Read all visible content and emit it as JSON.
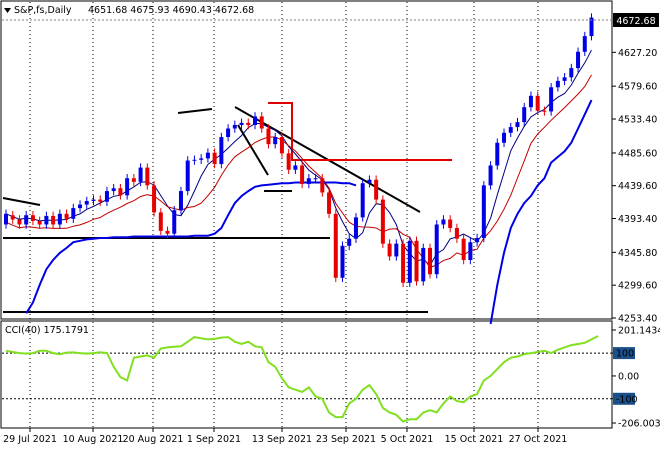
{
  "header": {
    "symbol": "S&P,fs,Daily",
    "ohlc": "4651.68 4675.93 4690.43 4672.68"
  },
  "indicator": {
    "label": "CCI(40) 175.1791"
  },
  "colors": {
    "bull": "#0000e6",
    "bear": "#e60000",
    "ma_fast": "#000080",
    "ma_mid": "#c00000",
    "ma_slow": "#0000e6",
    "cci": "#80e020",
    "level_hline": "#e00000",
    "support": "#000000",
    "price_badge_bg": "#000000",
    "price_badge_fg": "#ffffff"
  },
  "price_axis": {
    "ticks": [
      "4627.20",
      "4579.60",
      "4533.40",
      "4485.60",
      "4439.60",
      "4393.40",
      "4345.80",
      "4299.60",
      "4253.40"
    ],
    "current": "4672.68"
  },
  "cci_axis": {
    "ticks": [
      "201.1434",
      "100",
      "0.00",
      "-100",
      "-206.0037"
    ]
  },
  "time_axis": {
    "labels": [
      "29 Jul 2021",
      "10 Aug 2021",
      "20 Aug 2021",
      "1 Sep 2021",
      "13 Sep 2021",
      "23 Sep 2021",
      "5 Oct 2021",
      "15 Oct 2021",
      "27 Oct 2021"
    ]
  },
  "chart_data": {
    "type": "candlestick",
    "title": "S&P,fs,Daily",
    "ylim": [
      4245,
      4700
    ],
    "candles": [
      {
        "o": 4385,
        "c": 4400
      },
      {
        "o": 4398,
        "c": 4392
      },
      {
        "o": 4392,
        "c": 4385
      },
      {
        "o": 4385,
        "c": 4398
      },
      {
        "o": 4398,
        "c": 4390
      },
      {
        "o": 4390,
        "c": 4385
      },
      {
        "o": 4385,
        "c": 4397
      },
      {
        "o": 4397,
        "c": 4385
      },
      {
        "o": 4385,
        "c": 4400
      },
      {
        "o": 4400,
        "c": 4393
      },
      {
        "o": 4393,
        "c": 4408
      },
      {
        "o": 4408,
        "c": 4413
      },
      {
        "o": 4413,
        "c": 4418
      },
      {
        "o": 4418,
        "c": 4420
      },
      {
        "o": 4420,
        "c": 4417
      },
      {
        "o": 4417,
        "c": 4432
      },
      {
        "o": 4432,
        "c": 4436
      },
      {
        "o": 4436,
        "c": 4426
      },
      {
        "o": 4426,
        "c": 4450
      },
      {
        "o": 4450,
        "c": 4445
      },
      {
        "o": 4445,
        "c": 4465
      },
      {
        "o": 4465,
        "c": 4440
      },
      {
        "o": 4440,
        "c": 4402
      },
      {
        "o": 4402,
        "c": 4376
      },
      {
        "o": 4376,
        "c": 4372
      },
      {
        "o": 4372,
        "c": 4405
      },
      {
        "o": 4405,
        "c": 4432
      },
      {
        "o": 4432,
        "c": 4475
      },
      {
        "o": 4475,
        "c": 4476
      },
      {
        "o": 4476,
        "c": 4478
      },
      {
        "o": 4478,
        "c": 4486
      },
      {
        "o": 4486,
        "c": 4470
      },
      {
        "o": 4470,
        "c": 4508
      },
      {
        "o": 4508,
        "c": 4520
      },
      {
        "o": 4520,
        "c": 4525
      },
      {
        "o": 4525,
        "c": 4528
      },
      {
        "o": 4528,
        "c": 4525
      },
      {
        "o": 4525,
        "c": 4537
      },
      {
        "o": 4537,
        "c": 4520
      },
      {
        "o": 4520,
        "c": 4498
      },
      {
        "o": 4498,
        "c": 4508
      },
      {
        "o": 4508,
        "c": 4485
      },
      {
        "o": 4485,
        "c": 4462
      },
      {
        "o": 4462,
        "c": 4468
      },
      {
        "o": 4468,
        "c": 4442
      },
      {
        "o": 4442,
        "c": 4450
      },
      {
        "o": 4450,
        "c": 4450
      },
      {
        "o": 4450,
        "c": 4430
      },
      {
        "o": 4430,
        "c": 4400
      },
      {
        "o": 4400,
        "c": 4310
      },
      {
        "o": 4310,
        "c": 4355
      },
      {
        "o": 4355,
        "c": 4365
      },
      {
        "o": 4365,
        "c": 4395
      },
      {
        "o": 4395,
        "c": 4443
      },
      {
        "o": 4443,
        "c": 4448
      },
      {
        "o": 4448,
        "c": 4420
      },
      {
        "o": 4420,
        "c": 4358
      },
      {
        "o": 4358,
        "c": 4340
      },
      {
        "o": 4340,
        "c": 4358
      },
      {
        "o": 4358,
        "c": 4303
      },
      {
        "o": 4303,
        "c": 4362
      },
      {
        "o": 4362,
        "c": 4305
      },
      {
        "o": 4305,
        "c": 4352
      },
      {
        "o": 4352,
        "c": 4315
      },
      {
        "o": 4315,
        "c": 4385
      },
      {
        "o": 4385,
        "c": 4392
      },
      {
        "o": 4392,
        "c": 4380
      },
      {
        "o": 4380,
        "c": 4365
      },
      {
        "o": 4365,
        "c": 4335
      },
      {
        "o": 4335,
        "c": 4360
      },
      {
        "o": 4360,
        "c": 4366
      },
      {
        "o": 4366,
        "c": 4440
      },
      {
        "o": 4440,
        "c": 4468
      },
      {
        "o": 4468,
        "c": 4500
      },
      {
        "o": 4500,
        "c": 4514
      },
      {
        "o": 4514,
        "c": 4522
      },
      {
        "o": 4522,
        "c": 4529
      },
      {
        "o": 4529,
        "c": 4550
      },
      {
        "o": 4550,
        "c": 4566
      },
      {
        "o": 4566,
        "c": 4545
      },
      {
        "o": 4545,
        "c": 4544
      },
      {
        "o": 4544,
        "c": 4578
      },
      {
        "o": 4578,
        "c": 4587
      },
      {
        "o": 4587,
        "c": 4592
      },
      {
        "o": 4592,
        "c": 4605
      },
      {
        "o": 4605,
        "c": 4628
      },
      {
        "o": 4628,
        "c": 4650
      },
      {
        "o": 4650,
        "c": 4676
      }
    ]
  }
}
